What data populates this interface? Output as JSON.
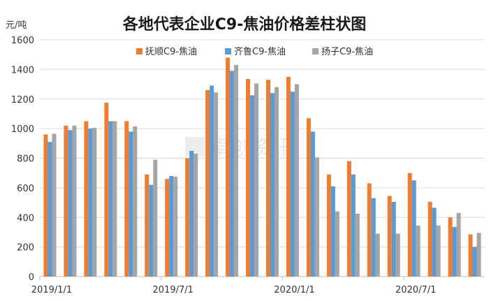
{
  "chart_data": {
    "type": "bar",
    "title": "各地代表企业C9-焦油价格差柱状图",
    "ylabel": "元/吨",
    "xlabel": "",
    "ylim": [
      0,
      1600
    ],
    "yticks": [
      0,
      200,
      400,
      600,
      800,
      1000,
      1200,
      1400,
      1600
    ],
    "grid": true,
    "legend_position": "top",
    "x_tick_labels": [
      {
        "label": "2019/1/1",
        "index": 0
      },
      {
        "label": "2019/7/1",
        "index": 6
      },
      {
        "label": "2020/1/1",
        "index": 12
      },
      {
        "label": "2020/7/1",
        "index": 18
      }
    ],
    "series": [
      {
        "name": "抚顺C9-焦油",
        "color": "#ED7D31",
        "values": [
          960,
          1020,
          1050,
          1175,
          1050,
          690,
          660,
          800,
          1260,
          1480,
          1335,
          1330,
          1350,
          1070,
          690,
          780,
          630,
          545,
          700,
          505,
          400,
          285
        ]
      },
      {
        "name": "齐鲁C9-焦油",
        "color": "#5B9BD5",
        "values": [
          910,
          990,
          1000,
          1050,
          980,
          620,
          680,
          850,
          1290,
          1390,
          1225,
          1240,
          1250,
          980,
          610,
          690,
          530,
          505,
          650,
          465,
          335,
          200
        ]
      },
      {
        "name": "扬子C9-焦油",
        "color": "#A5A5A5",
        "values": [
          965,
          1020,
          1005,
          1050,
          1015,
          790,
          675,
          830,
          1245,
          1430,
          1305,
          1280,
          1300,
          805,
          440,
          425,
          290,
          290,
          345,
          345,
          430,
          295
        ]
      }
    ]
  },
  "watermark": {
    "text": "卓创资讯"
  }
}
